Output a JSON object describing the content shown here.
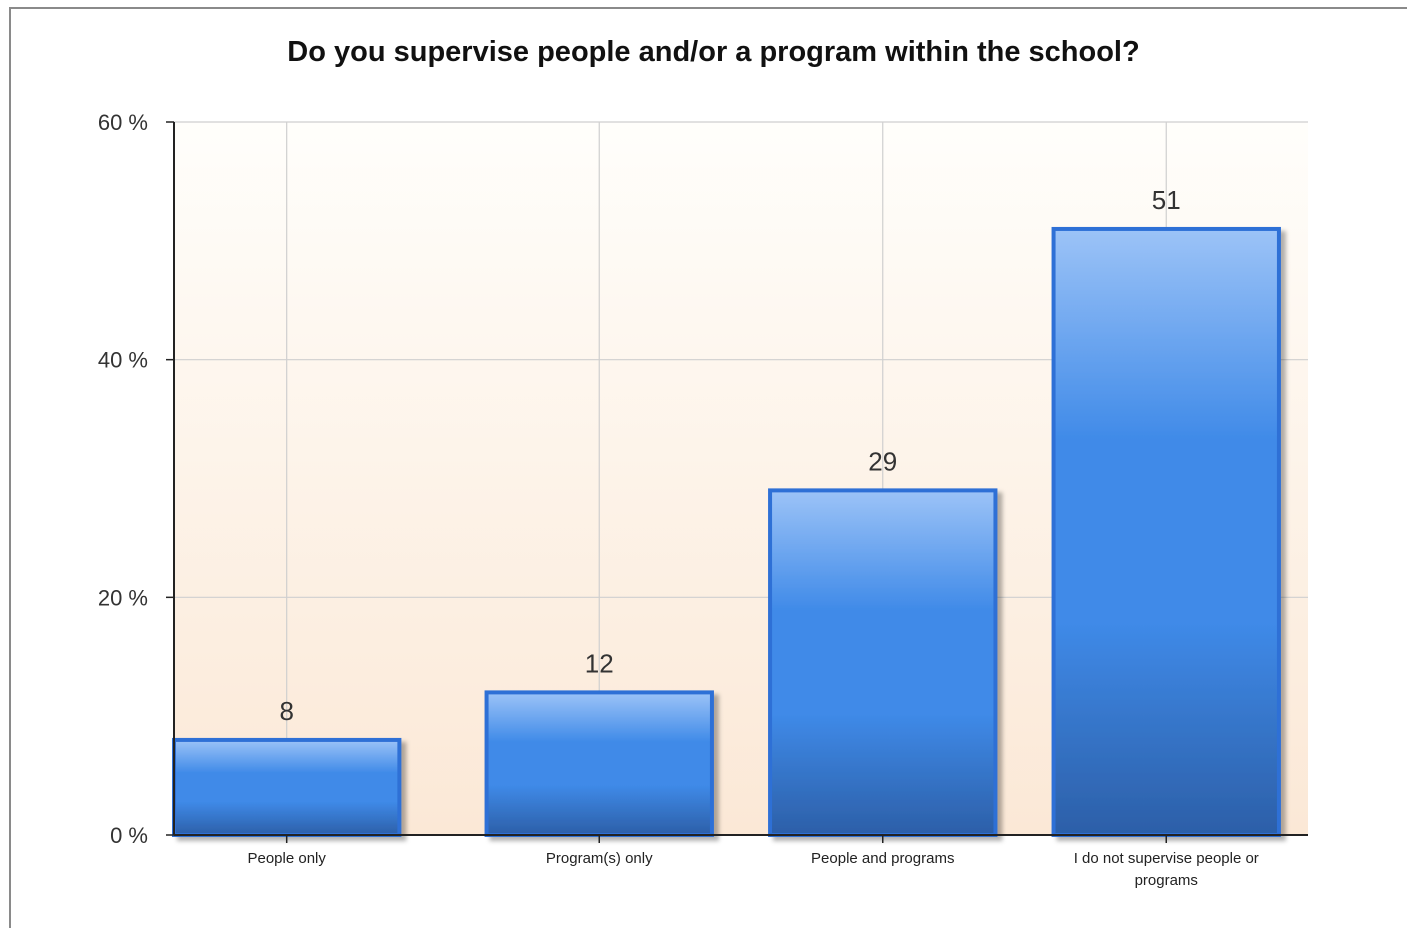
{
  "chart_data": {
    "type": "bar",
    "title": "Do you supervise people and/or a program within the school?",
    "categories": [
      [
        "People only"
      ],
      [
        "Program(s) only"
      ],
      [
        "People and programs"
      ],
      [
        "I do not supervise people or",
        "programs"
      ]
    ],
    "values": [
      8,
      12,
      29,
      51
    ],
    "data_labels": [
      "8",
      "12",
      "29",
      "51"
    ],
    "ylim": [
      0,
      60
    ],
    "yticks": [
      0,
      20,
      40,
      60
    ],
    "ytick_labels": [
      "0 %",
      "20 %",
      "40 %",
      "60 %"
    ],
    "xlabel": "",
    "ylabel": "",
    "grid": true,
    "legend": "none",
    "bar_color": "#3f8ae8",
    "background_gradient": [
      "#fffefb",
      "#fbe8d6"
    ]
  }
}
